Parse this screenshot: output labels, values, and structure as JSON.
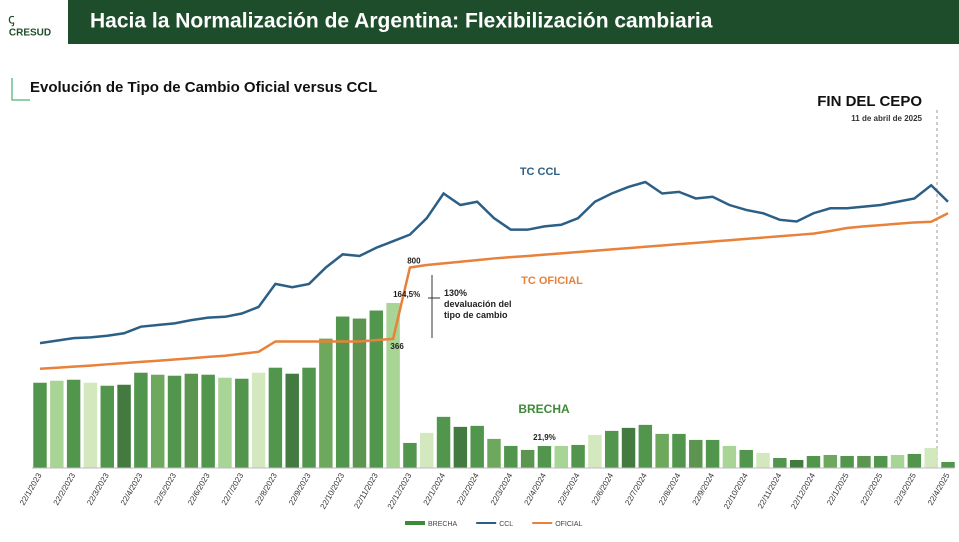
{
  "header": {
    "logo": "CRESUD",
    "title": "Hacia la Normalización de Argentina: Flexibilización cambiaria"
  },
  "chart_data": {
    "type": "combo",
    "title": "Evolución de Tipo de Cambio Oficial versus CCL",
    "event": {
      "title": "FIN DEL CEPO",
      "date": "11 de abril de 2025"
    },
    "annotations": [
      "TC CCL",
      "TC OFICIAL",
      "BRECHA",
      "130% devaluación del tipo de cambio"
    ],
    "categories": [
      "22/1/2023",
      null,
      "22/2/2023",
      null,
      "22/3/2023",
      null,
      "22/4/2023",
      null,
      "22/5/2023",
      null,
      "22/6/2023",
      null,
      "22/7/2023",
      null,
      "22/8/2023",
      null,
      "22/9/2023",
      null,
      "22/10/2023",
      null,
      "22/11/2023",
      null,
      "22/12/2023",
      null,
      "22/1/2024",
      null,
      "22/2/2024",
      null,
      "22/3/2024",
      null,
      "22/4/2024",
      null,
      "22/5/2024",
      null,
      "22/6/2024",
      null,
      "22/7/2024",
      null,
      "22/8/2024",
      null,
      "22/9/2024",
      null,
      "22/10/2024",
      null,
      "22/11/2024",
      null,
      "22/12/2024",
      null,
      "22/1/2025",
      null,
      "22/2/2025",
      null,
      "22/3/2025",
      null,
      "22/4/2025"
    ],
    "legend": "bottom",
    "series": [
      {
        "name": "BRECHA",
        "type": "bar",
        "color": "#3f8a3a",
        "values": [
          85,
          87,
          88,
          85,
          82,
          83,
          95,
          93,
          92,
          94,
          93,
          90,
          89,
          95,
          100,
          94,
          100,
          129,
          151,
          149,
          157,
          164.5,
          25,
          35,
          51,
          41,
          42,
          29,
          22,
          18,
          21.9,
          22,
          23,
          33,
          37,
          40,
          43,
          34,
          34,
          28,
          28,
          22,
          18,
          15,
          10,
          8,
          12,
          13,
          12,
          12,
          12,
          13,
          14,
          20,
          6
        ],
        "value_labels": [
          null,
          null,
          null,
          null,
          null,
          null,
          null,
          null,
          null,
          null,
          null,
          null,
          null,
          null,
          null,
          null,
          null,
          null,
          null,
          null,
          null,
          "164,5%",
          null,
          null,
          null,
          null,
          null,
          null,
          null,
          null,
          "21,9%",
          null,
          null,
          null,
          null,
          null,
          null,
          null,
          null,
          null,
          null,
          null,
          null,
          null,
          null,
          null,
          null,
          null,
          null,
          null,
          null,
          null,
          null,
          null,
          null
        ]
      },
      {
        "name": "CCL",
        "type": "line",
        "color": "#2b5f86",
        "values": [
          340,
          355,
          370,
          375,
          385,
          400,
          440,
          450,
          460,
          480,
          495,
          500,
          520,
          560,
          700,
          680,
          700,
          800,
          880,
          870,
          920,
          960,
          1000,
          1100,
          1250,
          1180,
          1200,
          1100,
          1030,
          1030,
          1050,
          1060,
          1100,
          1200,
          1250,
          1290,
          1320,
          1250,
          1260,
          1220,
          1230,
          1180,
          1150,
          1130,
          1090,
          1080,
          1130,
          1160,
          1160,
          1170,
          1180,
          1200,
          1220,
          1300,
          1200
        ]
      },
      {
        "name": "OFICIAL",
        "type": "line",
        "color": "#e8813a",
        "values": [
          184,
          190,
          197,
          203,
          211,
          218,
          226,
          233,
          240,
          248,
          256,
          263,
          275,
          287,
          350,
          350,
          350,
          350,
          350,
          350,
          358,
          366,
          800,
          815,
          825,
          835,
          845,
          855,
          863,
          870,
          878,
          886,
          894,
          902,
          910,
          918,
          926,
          934,
          942,
          950,
          958,
          966,
          974,
          982,
          990,
          998,
          1006,
          1022,
          1040,
          1050,
          1058,
          1066,
          1074,
          1078,
          1130
        ],
        "value_labels": [
          null,
          null,
          null,
          null,
          null,
          null,
          null,
          null,
          null,
          null,
          null,
          null,
          null,
          null,
          null,
          null,
          null,
          null,
          null,
          null,
          null,
          "366",
          "800",
          null,
          null,
          null,
          null,
          null,
          null,
          null,
          null,
          null,
          null,
          null,
          null,
          null,
          null,
          null,
          null,
          null,
          null,
          null,
          null,
          null,
          null,
          null,
          null,
          null,
          null,
          null,
          null,
          null,
          null,
          null,
          null
        ]
      }
    ]
  }
}
